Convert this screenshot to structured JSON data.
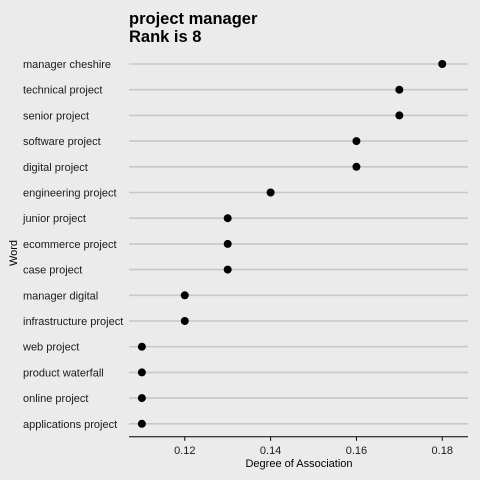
{
  "chart_data": {
    "type": "scatter",
    "title_line1": "project manager",
    "title_line2": "Rank is 8",
    "xlabel": "Degree of Association",
    "ylabel": "Word",
    "xlim": [
      0.107,
      0.186
    ],
    "x_ticks": [
      0.12,
      0.14,
      0.16,
      0.18
    ],
    "x_tick_labels": [
      "0.12",
      "0.14",
      "0.16",
      "0.18"
    ],
    "grid": "horizontal-major",
    "categories": [
      "manager cheshire",
      "technical project",
      "senior project",
      "software project",
      "digital project",
      "engineering project",
      "junior project",
      "ecommerce project",
      "case project",
      "manager digital",
      "infrastructure project",
      "web project",
      "product waterfall",
      "online project",
      "applications project"
    ],
    "values": [
      0.18,
      0.17,
      0.17,
      0.16,
      0.16,
      0.14,
      0.13,
      0.13,
      0.13,
      0.12,
      0.12,
      0.11,
      0.11,
      0.11,
      0.11
    ],
    "colors": {
      "background": "#ebebeb",
      "grid": "#c8c8c8",
      "point": "#000000",
      "text": "#1a1a1a"
    }
  }
}
